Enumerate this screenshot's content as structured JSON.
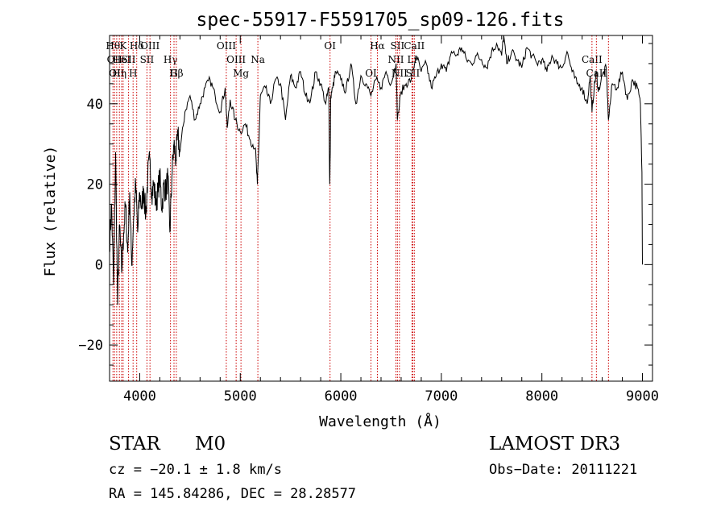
{
  "chart_data": {
    "type": "line",
    "title": "spec-55917-F5591705_sp09-126.fits",
    "xlabel": "Wavelength (Å)",
    "ylabel": "Flux (relative)",
    "xlim": [
      3700,
      9100
    ],
    "ylim": [
      -29,
      57
    ],
    "xticks": [
      4000,
      5000,
      6000,
      7000,
      8000,
      9000
    ],
    "yticks": [
      -20,
      0,
      20,
      40
    ],
    "series": [
      {
        "name": "flux",
        "x": [
          3700,
          3720,
          3740,
          3760,
          3780,
          3800,
          3820,
          3840,
          3860,
          3880,
          3900,
          3920,
          3940,
          3960,
          3980,
          4000,
          4020,
          4040,
          4060,
          4080,
          4100,
          4120,
          4140,
          4160,
          4180,
          4200,
          4220,
          4240,
          4260,
          4280,
          4300,
          4320,
          4340,
          4360,
          4380,
          4400,
          4450,
          4500,
          4550,
          4600,
          4650,
          4700,
          4750,
          4800,
          4850,
          4870,
          4900,
          4950,
          5000,
          5050,
          5100,
          5150,
          5170,
          5185,
          5200,
          5250,
          5300,
          5350,
          5400,
          5450,
          5500,
          5550,
          5600,
          5650,
          5700,
          5750,
          5800,
          5850,
          5880,
          5890,
          5896,
          5900,
          5920,
          5950,
          6000,
          6050,
          6100,
          6150,
          6200,
          6250,
          6300,
          6350,
          6400,
          6450,
          6500,
          6550,
          6563,
          6600,
          6650,
          6700,
          6750,
          6800,
          6850,
          6900,
          6950,
          7000,
          7050,
          7100,
          7150,
          7200,
          7250,
          7300,
          7350,
          7400,
          7450,
          7500,
          7550,
          7600,
          7620,
          7650,
          7700,
          7750,
          7800,
          7850,
          7900,
          7950,
          8000,
          8050,
          8100,
          8150,
          8200,
          8250,
          8300,
          8350,
          8400,
          8450,
          8480,
          8498,
          8520,
          8542,
          8560,
          8600,
          8640,
          8662,
          8700,
          8750,
          8800,
          8850,
          8900,
          8950,
          8980,
          8995,
          9000
        ],
        "y": [
          5,
          15,
          -5,
          28,
          -10,
          10,
          -2,
          8,
          15,
          3,
          18,
          0,
          12,
          20,
          8,
          18,
          14,
          19,
          12,
          22,
          26,
          18,
          20,
          15,
          18,
          22,
          14,
          20,
          18,
          22,
          8,
          22,
          30,
          26,
          32,
          28,
          38,
          42,
          36,
          40,
          44,
          46,
          42,
          38,
          44,
          34,
          41,
          36,
          33,
          35,
          31,
          29,
          20,
          30,
          42,
          44,
          40,
          46,
          45,
          36,
          47,
          44,
          48,
          42,
          41,
          48,
          45,
          40,
          44,
          20,
          30,
          42,
          44,
          48,
          46,
          43,
          50,
          40,
          47,
          45,
          42,
          46,
          44,
          48,
          45,
          50,
          36,
          43,
          45,
          46,
          52,
          48,
          50,
          44,
          47,
          50,
          48,
          53,
          52,
          54,
          51,
          50,
          52,
          51,
          49,
          53,
          55,
          52,
          57,
          50,
          53,
          51,
          49,
          54,
          52,
          50,
          51,
          48,
          52,
          50,
          49,
          53,
          48,
          45,
          44,
          40,
          47,
          38,
          44,
          48,
          43,
          47,
          49,
          36,
          45,
          44,
          48,
          41,
          46,
          44,
          40,
          23,
          0
        ]
      }
    ],
    "line_markers": [
      {
        "x": 3734,
        "label": "Hθ",
        "row": 1
      },
      {
        "x": 3750,
        "label": "OII",
        "row": 2
      },
      {
        "x": 3771,
        "label": "OII",
        "row": 3
      },
      {
        "x": 3798,
        "label": "Hη",
        "row": 3
      },
      {
        "x": 3820,
        "label": "HeI",
        "row": 2
      },
      {
        "x": 3835,
        "label": "K",
        "row": 1
      },
      {
        "x": 3889,
        "label": "SII",
        "row": 2
      },
      {
        "x": 3934,
        "label": "H",
        "row": 3
      },
      {
        "x": 3970,
        "label": "Hδ",
        "row": 1
      },
      {
        "x": 4072,
        "label": "SII",
        "row": 2
      },
      {
        "x": 4102,
        "label": "OIII",
        "row": 1
      },
      {
        "x": 4306,
        "label": "Hγ",
        "row": 2
      },
      {
        "x": 4341,
        "label": "G",
        "row": 3
      },
      {
        "x": 4364,
        "label": "Hβ",
        "row": 3
      },
      {
        "x": 4861,
        "label": "OIII",
        "row": 1
      },
      {
        "x": 4959,
        "label": "OIII",
        "row": 2
      },
      {
        "x": 5007,
        "label": "Mg",
        "row": 3
      },
      {
        "x": 5175,
        "label": "Na",
        "row": 2
      },
      {
        "x": 5893,
        "label": "OI",
        "row": 1
      },
      {
        "x": 6300,
        "label": "OI",
        "row": 3
      },
      {
        "x": 6364,
        "label": "Hα",
        "row": 1
      },
      {
        "x": 6548,
        "label": "NII",
        "row": 2
      },
      {
        "x": 6563,
        "label": "SII",
        "row": 1
      },
      {
        "x": 6583,
        "label": "NII",
        "row": 3
      },
      {
        "x": 6708,
        "label": "Li",
        "row": 2
      },
      {
        "x": 6716,
        "label": "SII",
        "row": 3
      },
      {
        "x": 6731,
        "label": "CaII",
        "row": 1
      },
      {
        "x": 8498,
        "label": "CaII",
        "row": 2
      },
      {
        "x": 8542,
        "label": "CaII",
        "row": 3
      },
      {
        "x": 8662,
        "label": "",
        "row": 0
      }
    ]
  },
  "footer": {
    "object_class": "STAR",
    "subclass": "M0",
    "survey": "LAMOST DR3",
    "cz": "cz = −20.1 ± 1.8 km/s",
    "obs_date": "Obs−Date: 20111221",
    "coords": "RA = 145.84286, DEC =  28.28577"
  }
}
